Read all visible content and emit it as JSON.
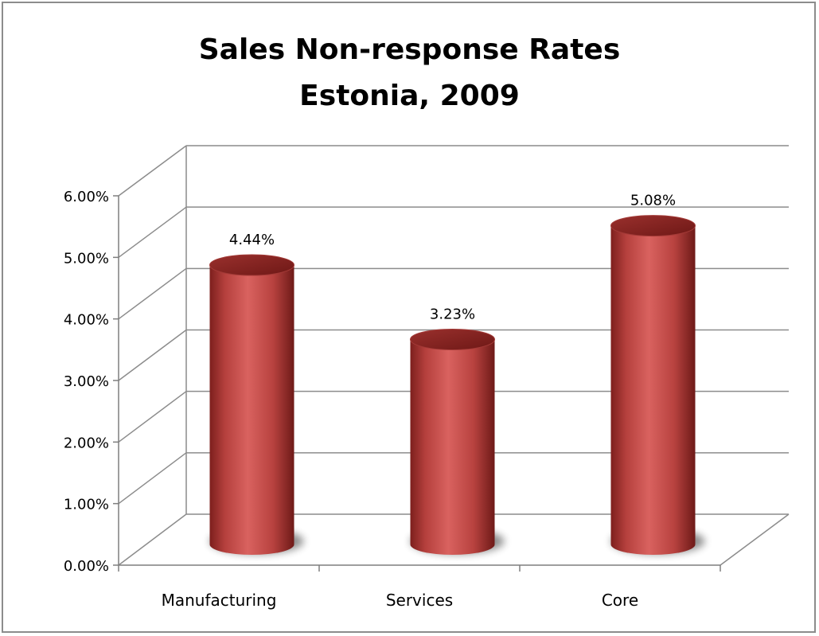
{
  "chart_data": {
    "type": "bar",
    "style": "3d-cylinder",
    "title": [
      "Sales Non-response Rates",
      "Estonia, 2009"
    ],
    "categories": [
      "Manufacturing",
      "Services",
      "Core"
    ],
    "values": [
      4.44,
      3.23,
      5.08
    ],
    "data_labels": [
      "4.44%",
      "3.23%",
      "5.08%"
    ],
    "y_ticks": [
      0,
      1,
      2,
      3,
      4,
      5,
      6
    ],
    "y_tick_labels": [
      "0.00%",
      "1.00%",
      "2.00%",
      "3.00%",
      "4.00%",
      "5.00%",
      "6.00%"
    ],
    "ylim": [
      0,
      6
    ],
    "grid": true,
    "legend": "none",
    "bar_color": "#c0504d",
    "xlabel": "",
    "ylabel": ""
  }
}
